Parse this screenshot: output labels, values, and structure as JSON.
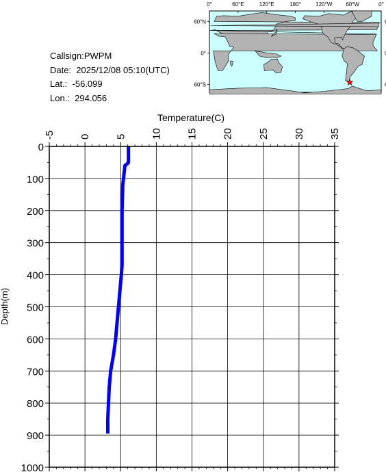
{
  "info": {
    "callsign": "Callsign:PWPM",
    "date": "Date:  2025/12/08 05:10(UTC)",
    "lat": "Lat.:  -56.099",
    "lon": "Lon.:  294.056"
  },
  "map": {
    "lon_labels": [
      "0°",
      "60°E",
      "120°E",
      "180°",
      "120°W",
      "60°W",
      "0°"
    ],
    "lat_labels": [
      "60°N",
      "0°",
      "60°S"
    ],
    "marker": {
      "lat": -56.099,
      "lon": 294.056
    },
    "ocean_color": "#ccffff",
    "land_color": "#b3b3b3",
    "marker_color": "#ff0000"
  },
  "chart_data": {
    "type": "line",
    "title": "",
    "xlabel": "Temperature(C)",
    "ylabel": "Depth(m)",
    "xlim": [
      -5,
      35
    ],
    "ylim": [
      1000,
      0
    ],
    "x_ticks": [
      "-5",
      "0",
      "5",
      "10",
      "15",
      "20",
      "25",
      "30",
      "35"
    ],
    "y_ticks": [
      "0",
      "100",
      "200",
      "300",
      "400",
      "500",
      "600",
      "700",
      "800",
      "900",
      "1000"
    ],
    "grid": true,
    "line_color": "#0000ff",
    "series": [
      {
        "points": [
          [
            6.1,
            0
          ],
          [
            6.1,
            50
          ],
          [
            5.9,
            55
          ],
          [
            5.6,
            60
          ],
          [
            5.5,
            80
          ],
          [
            5.3,
            120
          ],
          [
            5.2,
            200
          ],
          [
            5.2,
            300
          ],
          [
            5.2,
            370
          ],
          [
            5.1,
            400
          ],
          [
            4.9,
            450
          ],
          [
            4.7,
            500
          ],
          [
            4.5,
            550
          ],
          [
            4.3,
            600
          ],
          [
            4.0,
            650
          ],
          [
            3.6,
            700
          ],
          [
            3.4,
            750
          ],
          [
            3.3,
            800
          ],
          [
            3.2,
            850
          ],
          [
            3.2,
            895
          ]
        ]
      }
    ]
  }
}
